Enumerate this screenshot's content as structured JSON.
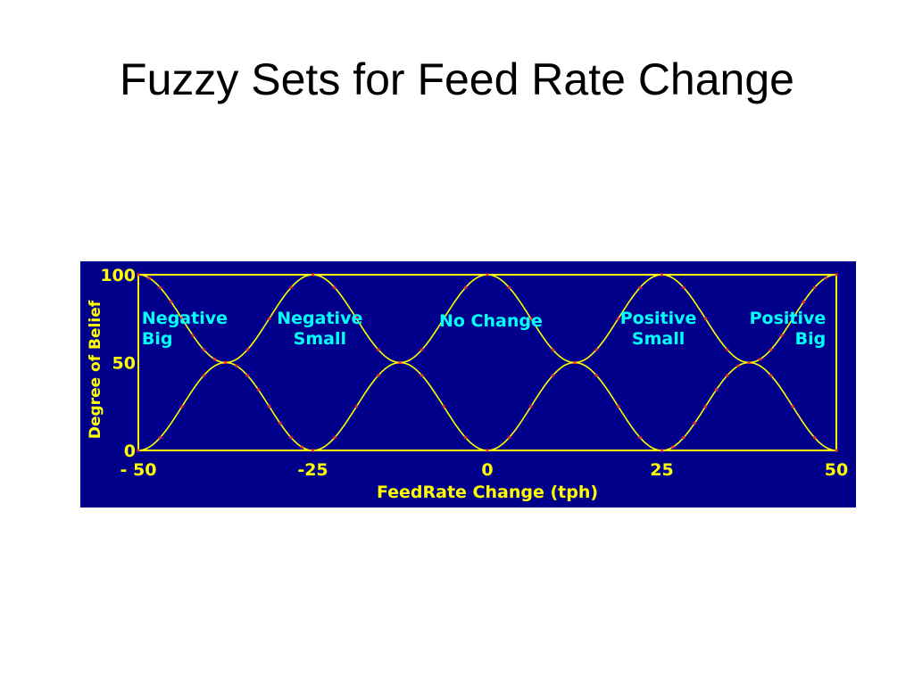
{
  "slide": {
    "title": "Fuzzy Sets for Feed Rate Change"
  },
  "chart_data": {
    "type": "line",
    "title": "",
    "xlabel": "FeedRate Change (tph)",
    "ylabel": "Degree of Belief",
    "xlim": [
      -50,
      50
    ],
    "ylim": [
      0,
      100
    ],
    "x_ticks": [
      -50,
      -25,
      0,
      25,
      50
    ],
    "x_tick_labels": [
      "- 50",
      "-25",
      "0",
      "25",
      "50"
    ],
    "y_ticks": [
      0,
      50,
      100
    ],
    "y_tick_labels": [
      "0",
      "50",
      "100"
    ],
    "grid": false,
    "legend": "none",
    "x": [
      -50,
      -37.5,
      -25,
      -12.5,
      0,
      12.5,
      25,
      37.5,
      50
    ],
    "series": [
      {
        "name_lines": [
          "Negative",
          "Big"
        ],
        "label_align": "left",
        "label_x": -49.5,
        "values": [
          100,
          50,
          0,
          0,
          0,
          0,
          0,
          0,
          0
        ]
      },
      {
        "name_lines": [
          "Negative",
          "Small"
        ],
        "label_align": "center",
        "label_x": -24,
        "values": [
          0,
          50,
          100,
          50,
          0,
          0,
          0,
          0,
          0
        ]
      },
      {
        "name_lines": [
          "No Change"
        ],
        "label_align": "center",
        "label_x": 0.5,
        "values": [
          0,
          0,
          0,
          50,
          100,
          50,
          0,
          0,
          0
        ]
      },
      {
        "name_lines": [
          "Positive",
          "Small"
        ],
        "label_align": "center",
        "label_x": 24.5,
        "values": [
          0,
          0,
          0,
          0,
          0,
          50,
          100,
          50,
          0
        ]
      },
      {
        "name_lines": [
          "Positive",
          "Big"
        ],
        "label_align": "right",
        "label_x": 48.5,
        "values": [
          0,
          0,
          0,
          0,
          0,
          0,
          0,
          50,
          100
        ]
      }
    ],
    "curve_shape": "cosine",
    "colors": {
      "background": "#00008b",
      "line": "#ffff00",
      "marker": "#ff3030",
      "series_label": "#00ffff",
      "axis_text": "#ffff00"
    }
  }
}
